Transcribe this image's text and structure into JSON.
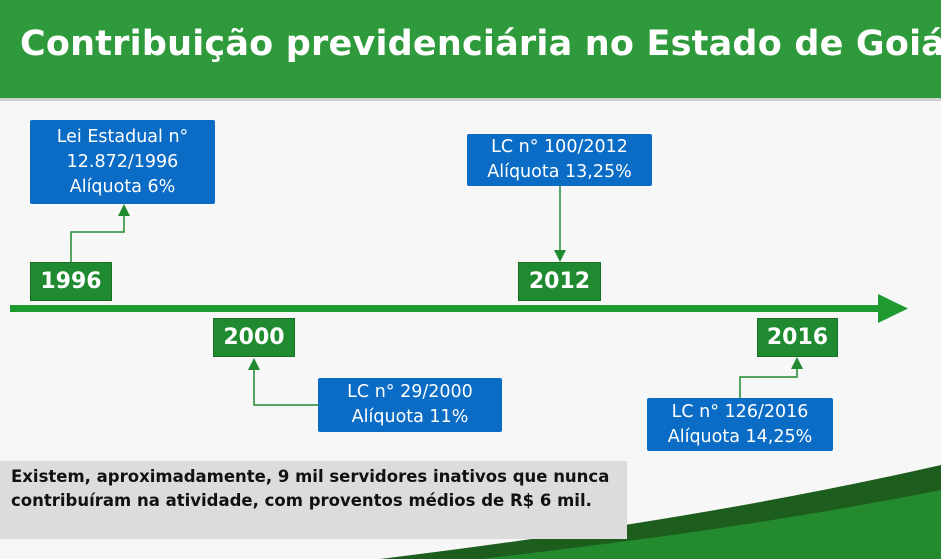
{
  "title": "Contribuição previdenciária no Estado de Goiás",
  "events": [
    {
      "year": "1996",
      "law": "Lei Estadual n°",
      "number": "12.872/1996",
      "rate": "Alíquota 6%"
    },
    {
      "year": "2000",
      "law": "LC n° 29/2000",
      "rate": "Alíquota 11%"
    },
    {
      "year": "2012",
      "law": "LC n° 100/2012",
      "rate": "Alíquota 13,25%"
    },
    {
      "year": "2016",
      "law": "LC n° 126/2016",
      "rate": "Alíquota 14,25%"
    }
  ],
  "note": "Existem, aproximadamente, 9 mil servidores inativos que nunca contribuíram na atividade, com proventos médios de R$ 6 mil.",
  "colors": {
    "green": "#1f8a2f",
    "blue": "#0a6cc4",
    "title_bg": "#2f9a3b"
  }
}
